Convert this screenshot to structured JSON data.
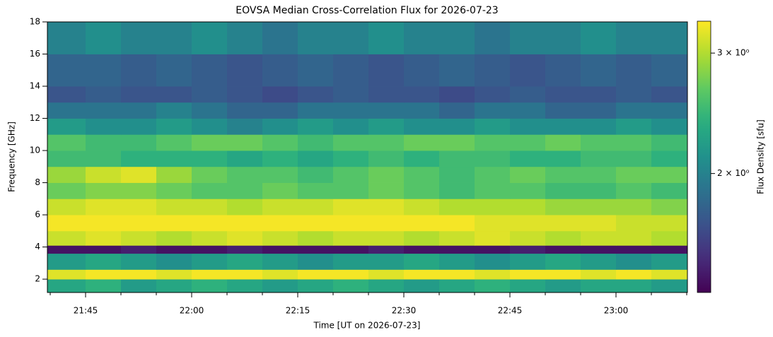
{
  "chart_data": {
    "type": "heatmap",
    "title": "EOVSA Median Cross-Correlation Flux for 2026-07-23",
    "x_label": "Time [UT on 2026-07-23]",
    "y_label": "Frequency [GHz]",
    "colorbar_label": "Flux Density [sfu]",
    "colormap": "viridis",
    "color_scale": "log",
    "xlim": [
      1299.6,
      1390.1
    ],
    "xticks": [
      {
        "value": 1305,
        "label": "21:45"
      },
      {
        "value": 1320,
        "label": "22:00"
      },
      {
        "value": 1335,
        "label": "22:15"
      },
      {
        "value": 1350,
        "label": "22:30"
      },
      {
        "value": 1365,
        "label": "22:45"
      },
      {
        "value": 1380,
        "label": "23:00"
      }
    ],
    "xminorticks": [
      1300,
      1310,
      1315,
      1325,
      1330,
      1340,
      1345,
      1355,
      1360,
      1370,
      1375,
      1385,
      1390
    ],
    "ylim": [
      1.17,
      18
    ],
    "yticks": [
      2,
      4,
      6,
      8,
      10,
      12,
      14,
      16,
      18
    ],
    "zlim": [
      1.34,
      3.34
    ],
    "zticks": [
      {
        "value": 2,
        "label": "2 × 10⁰"
      },
      {
        "value": 3,
        "label": "3 × 10⁰"
      }
    ],
    "xbins": [
      1299.6,
      1305,
      1310,
      1315,
      1320,
      1325,
      1330,
      1335,
      1340,
      1345,
      1350,
      1355,
      1360,
      1365,
      1370,
      1375,
      1380,
      1385,
      1390.1
    ],
    "ybins": [
      1.17,
      2,
      2.6,
      3.6,
      4.1,
      5,
      6,
      7,
      8,
      9,
      10,
      11,
      12,
      13,
      14,
      16,
      18
    ],
    "z": [
      [
        2.3,
        2.4,
        2.2,
        2.3,
        2.4,
        2.3,
        2.2,
        2.3,
        2.4,
        2.3,
        2.2,
        2.3,
        2.4,
        2.3,
        2.2,
        2.3,
        2.3,
        2.2
      ],
      [
        3.2,
        3.3,
        3.3,
        3.2,
        3.3,
        3.3,
        3.2,
        3.3,
        3.3,
        3.2,
        3.3,
        3.3,
        3.2,
        3.3,
        3.3,
        3.2,
        3.3,
        3.2
      ],
      [
        2.2,
        2.3,
        2.2,
        2.1,
        2.2,
        2.3,
        2.2,
        2.1,
        2.2,
        2.2,
        2.3,
        2.2,
        2.1,
        2.2,
        2.3,
        2.2,
        2.1,
        2.2
      ],
      [
        1.4,
        1.4,
        1.45,
        1.4,
        1.4,
        1.45,
        1.4,
        1.4,
        1.4,
        1.45,
        1.4,
        1.4,
        1.4,
        1.45,
        1.4,
        1.4,
        1.4,
        1.4
      ],
      [
        3.1,
        3.2,
        3.1,
        3.0,
        3.1,
        3.2,
        3.1,
        3.0,
        3.1,
        3.1,
        3.0,
        3.1,
        3.2,
        3.1,
        3.0,
        3.1,
        3.1,
        3.0
      ],
      [
        3.3,
        3.3,
        3.3,
        3.3,
        3.3,
        3.3,
        3.3,
        3.3,
        3.3,
        3.3,
        3.3,
        3.3,
        3.2,
        3.2,
        3.2,
        3.2,
        3.1,
        3.1
      ],
      [
        3.1,
        3.2,
        3.2,
        3.1,
        3.1,
        3.0,
        3.1,
        3.1,
        3.2,
        3.2,
        3.1,
        3.0,
        3.0,
        3.0,
        2.9,
        2.9,
        2.9,
        2.8
      ],
      [
        2.7,
        2.8,
        2.8,
        2.7,
        2.6,
        2.6,
        2.7,
        2.6,
        2.6,
        2.7,
        2.6,
        2.5,
        2.6,
        2.6,
        2.5,
        2.5,
        2.6,
        2.5
      ],
      [
        2.9,
        3.1,
        3.2,
        2.9,
        2.7,
        2.6,
        2.6,
        2.5,
        2.6,
        2.7,
        2.6,
        2.5,
        2.6,
        2.7,
        2.6,
        2.6,
        2.7,
        2.7
      ],
      [
        2.5,
        2.5,
        2.4,
        2.4,
        2.4,
        2.3,
        2.4,
        2.3,
        2.4,
        2.5,
        2.4,
        2.5,
        2.5,
        2.4,
        2.4,
        2.5,
        2.5,
        2.4
      ],
      [
        2.6,
        2.5,
        2.5,
        2.6,
        2.7,
        2.7,
        2.6,
        2.5,
        2.6,
        2.6,
        2.7,
        2.7,
        2.6,
        2.6,
        2.7,
        2.6,
        2.6,
        2.5
      ],
      [
        2.2,
        2.1,
        2.1,
        2.2,
        2.1,
        2.0,
        2.1,
        2.2,
        2.1,
        2.2,
        2.1,
        2.1,
        2.2,
        2.1,
        2.1,
        2.1,
        2.2,
        2.1
      ],
      [
        1.9,
        1.9,
        1.9,
        2.0,
        1.9,
        1.8,
        1.8,
        1.9,
        1.9,
        1.9,
        1.9,
        1.8,
        1.9,
        1.9,
        1.8,
        1.8,
        1.9,
        1.9
      ],
      [
        1.7,
        1.75,
        1.7,
        1.7,
        1.75,
        1.7,
        1.65,
        1.7,
        1.75,
        1.7,
        1.7,
        1.65,
        1.7,
        1.75,
        1.7,
        1.7,
        1.75,
        1.7
      ],
      [
        1.8,
        1.8,
        1.75,
        1.8,
        1.75,
        1.7,
        1.75,
        1.8,
        1.75,
        1.7,
        1.75,
        1.8,
        1.75,
        1.7,
        1.75,
        1.8,
        1.75,
        1.8
      ],
      [
        2.0,
        2.1,
        2.0,
        2.0,
        2.1,
        2.0,
        1.9,
        2.0,
        2.0,
        2.1,
        2.0,
        2.0,
        1.9,
        2.0,
        2.0,
        2.1,
        2.0,
        2.0
      ]
    ]
  }
}
